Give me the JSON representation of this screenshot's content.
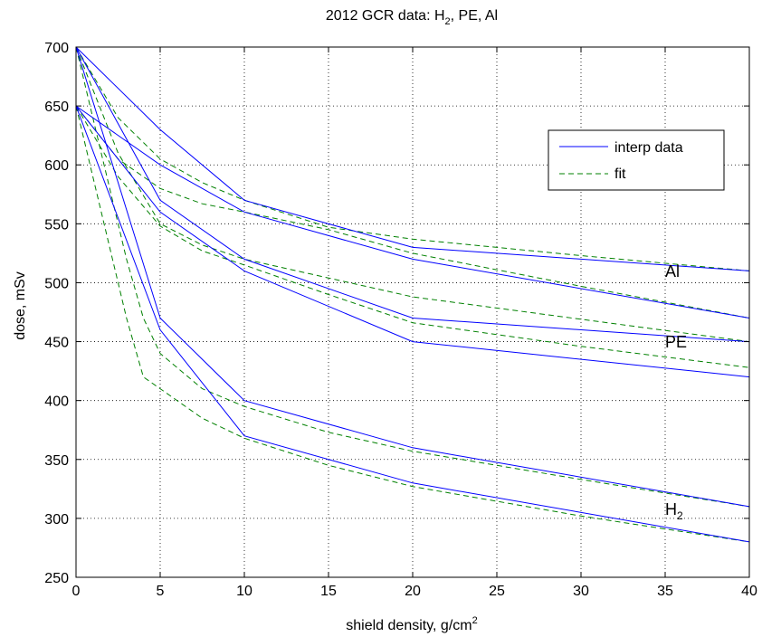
{
  "chart_data": {
    "type": "line",
    "title": "2012 GCR data: H",
    "title_sub": "2",
    "title_rest": ", PE, Al",
    "xlabel": "shield density, g/cm",
    "xlabel_sup": "2",
    "ylabel": "dose, mSv",
    "xlim": [
      0,
      40
    ],
    "ylim": [
      250,
      700
    ],
    "xticks": [
      0,
      5,
      10,
      15,
      20,
      25,
      30,
      35,
      40
    ],
    "yticks": [
      250,
      300,
      350,
      400,
      450,
      500,
      550,
      600,
      650,
      700
    ],
    "grid": true,
    "legend": {
      "placement": "top-right",
      "entries": [
        {
          "label": "interp data",
          "color": "#0000ff",
          "style": "solid"
        },
        {
          "label": "fit",
          "color": "#008000",
          "style": "dashed"
        }
      ]
    },
    "annotations": [
      {
        "text": "Al",
        "x": 35,
        "y": 505
      },
      {
        "text": "PE",
        "x": 35,
        "y": 445
      },
      {
        "text": "H",
        "sub": "2",
        "x": 35,
        "y": 303
      }
    ],
    "series": [
      {
        "kind": "interp",
        "group": "Al",
        "x": [
          0,
          5,
          10,
          20,
          40
        ],
        "y": [
          700,
          630,
          570,
          530,
          510
        ]
      },
      {
        "kind": "interp",
        "group": "Al",
        "x": [
          0,
          5,
          10,
          20,
          40
        ],
        "y": [
          650,
          600,
          560,
          520,
          470
        ]
      },
      {
        "kind": "interp",
        "group": "PE",
        "x": [
          0,
          5,
          10,
          20,
          40
        ],
        "y": [
          700,
          570,
          520,
          470,
          450
        ]
      },
      {
        "kind": "interp",
        "group": "PE",
        "x": [
          0,
          5,
          10,
          20,
          40
        ],
        "y": [
          650,
          560,
          510,
          450,
          420
        ]
      },
      {
        "kind": "interp",
        "group": "H2",
        "x": [
          0,
          5,
          10,
          20,
          40
        ],
        "y": [
          700,
          470,
          400,
          360,
          310
        ]
      },
      {
        "kind": "interp",
        "group": "H2",
        "x": [
          0,
          5,
          10,
          20,
          40
        ],
        "y": [
          650,
          460,
          370,
          330,
          280
        ]
      },
      {
        "kind": "fit",
        "group": "Al",
        "x": [
          0,
          2.5,
          5,
          7.5,
          10,
          15,
          20,
          30,
          40
        ],
        "y": [
          700,
          640,
          605,
          585,
          570,
          547,
          537,
          523,
          510
        ]
      },
      {
        "kind": "fit",
        "group": "Al",
        "x": [
          0,
          2.5,
          5,
          7.5,
          10,
          15,
          20,
          30,
          40
        ],
        "y": [
          650,
          605,
          580,
          567,
          560,
          545,
          525,
          497,
          470
        ]
      },
      {
        "kind": "fit",
        "group": "PE",
        "x": [
          0,
          2.5,
          5,
          7.5,
          10,
          15,
          20,
          30,
          40
        ],
        "y": [
          700,
          610,
          550,
          532,
          520,
          504,
          488,
          469,
          450
        ]
      },
      {
        "kind": "fit",
        "group": "PE",
        "x": [
          0,
          2.5,
          5,
          7.5,
          10,
          15,
          20,
          30,
          40
        ],
        "y": [
          650,
          590,
          548,
          527,
          515,
          490,
          466,
          446,
          428
        ]
      },
      {
        "kind": "fit",
        "group": "H2",
        "x": [
          0,
          1.5,
          3,
          4,
          5,
          7.5,
          10,
          15,
          20,
          30,
          40
        ],
        "y": [
          700,
          610,
          520,
          470,
          440,
          410,
          395,
          373,
          357,
          333,
          310
        ]
      },
      {
        "kind": "fit",
        "group": "H2",
        "x": [
          0,
          1.5,
          3,
          4,
          5,
          7.5,
          10,
          15,
          20,
          30,
          40
        ],
        "y": [
          650,
          560,
          470,
          420,
          410,
          385,
          368,
          345,
          327,
          302,
          280
        ]
      }
    ]
  }
}
